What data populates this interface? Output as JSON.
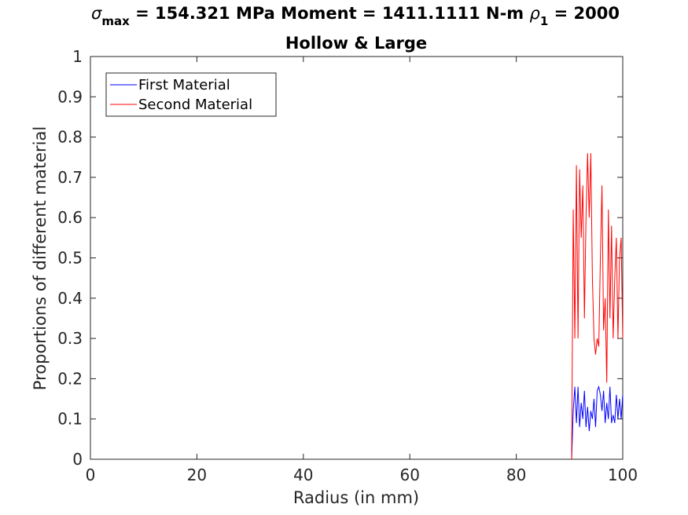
{
  "chart_data": {
    "type": "line",
    "title": {
      "sigma_symbol": "σ",
      "sigma_subscript": "max",
      "stress_text": " = 154.321 MPa Moment = 1411.1111 N-m  ",
      "rho_symbol": "ρ",
      "rho_subscript": "1",
      "rho_text": " = 2000"
    },
    "subtitle": "Hollow & Large",
    "xlabel": "Radius (in mm)",
    "ylabel": "Proportions of different material",
    "xlim": [
      0,
      100
    ],
    "ylim": [
      0,
      1
    ],
    "xticks": [
      "0",
      "20",
      "40",
      "60",
      "80",
      "100"
    ],
    "yticks": [
      "0",
      "0.1",
      "0.2",
      "0.3",
      "0.4",
      "0.5",
      "0.6",
      "0.7",
      "0.8",
      "0.9",
      "1"
    ],
    "legend": {
      "placement": "top-left"
    },
    "grid": false,
    "series": [
      {
        "name": "First Material",
        "color": "#0000ff",
        "x": [
          90.4,
          90.7,
          91.0,
          91.3,
          91.6,
          91.9,
          92.2,
          92.5,
          92.8,
          93.1,
          93.4,
          93.7,
          94.0,
          94.3,
          94.6,
          94.9,
          95.2,
          95.5,
          95.8,
          96.1,
          96.4,
          96.7,
          97.0,
          97.3,
          97.6,
          97.9,
          98.2,
          98.5,
          98.8,
          99.1,
          99.4,
          99.7,
          100.0
        ],
        "y": [
          0,
          0.12,
          0.18,
          0.09,
          0.18,
          0.08,
          0.14,
          0.1,
          0.17,
          0.08,
          0.13,
          0.07,
          0.12,
          0.1,
          0.15,
          0.08,
          0.17,
          0.18,
          0.16,
          0.12,
          0.17,
          0.09,
          0.14,
          0.1,
          0.18,
          0.09,
          0.11,
          0.09,
          0.16,
          0.1,
          0.15,
          0.1,
          0.16
        ]
      },
      {
        "name": "Second Material",
        "color": "#ff0000",
        "x": [
          90.4,
          90.7,
          91.0,
          91.3,
          91.6,
          91.9,
          92.2,
          92.5,
          92.8,
          93.1,
          93.4,
          93.7,
          94.0,
          94.3,
          94.6,
          94.9,
          95.2,
          95.5,
          95.8,
          96.1,
          96.4,
          96.7,
          97.0,
          97.3,
          97.6,
          97.9,
          98.2,
          98.5,
          98.8,
          99.1,
          99.4,
          99.7,
          100.0
        ],
        "y": [
          0,
          0.62,
          0.3,
          0.73,
          0.3,
          0.72,
          0.55,
          0.68,
          0.35,
          0.6,
          0.76,
          0.6,
          0.76,
          0.45,
          0.3,
          0.26,
          0.3,
          0.28,
          0.5,
          0.68,
          0.32,
          0.4,
          0.19,
          0.62,
          0.35,
          0.58,
          0.3,
          0.45,
          0.55,
          0.3,
          0.5,
          0.55,
          0.3
        ]
      }
    ]
  }
}
